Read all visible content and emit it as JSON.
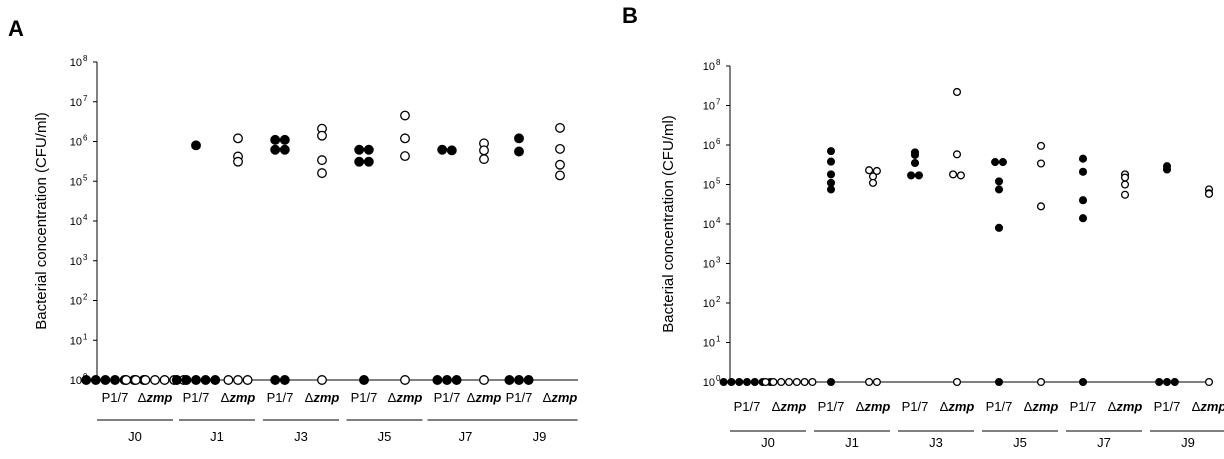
{
  "chart_data": [
    {
      "panel": "A",
      "type": "scatter",
      "ylabel": "Bacterial concentration (CFU/ml)",
      "yscale": "log",
      "ylim": [
        1,
        100000000
      ],
      "yticks": [
        {
          "base": "10",
          "exp": "0"
        },
        {
          "base": "10",
          "exp": "1"
        },
        {
          "base": "10",
          "exp": "2"
        },
        {
          "base": "10",
          "exp": "3"
        },
        {
          "base": "10",
          "exp": "4"
        },
        {
          "base": "10",
          "exp": "5"
        },
        {
          "base": "10",
          "exp": "6"
        },
        {
          "base": "10",
          "exp": "7"
        },
        {
          "base": "10",
          "exp": "8"
        }
      ],
      "groups": [
        {
          "label": "J0",
          "categories": [
            {
              "label": "P1/7",
              "italic": false,
              "marker": "filled",
              "values": [
                1,
                1,
                1,
                1,
                1,
                1,
                1
              ]
            },
            {
              "label": "Δzmp",
              "italic": true,
              "marker": "open",
              "values": [
                1,
                1,
                1,
                1,
                1,
                1,
                1
              ]
            }
          ]
        },
        {
          "label": "J1",
          "categories": [
            {
              "label": "P1/7",
              "italic": false,
              "marker": "filled",
              "values": [
                800000,
                1,
                1,
                1,
                1,
                1
              ]
            },
            {
              "label": "Δzmp",
              "italic": true,
              "marker": "open",
              "values": [
                1200000,
                420000,
                310000,
                1,
                1,
                1
              ]
            }
          ]
        },
        {
          "label": "J3",
          "categories": [
            {
              "label": "P1/7",
              "italic": false,
              "marker": "filled",
              "values": [
                1100000,
                1100000,
                620000,
                620000,
                1,
                1
              ]
            },
            {
              "label": "Δzmp",
              "italic": true,
              "marker": "open",
              "values": [
                2100000,
                1400000,
                340000,
                160000,
                1
              ]
            }
          ]
        },
        {
          "label": "J5",
          "categories": [
            {
              "label": "P1/7",
              "italic": false,
              "marker": "filled",
              "values": [
                620000,
                620000,
                310000,
                310000,
                1
              ]
            },
            {
              "label": "Δzmp",
              "italic": true,
              "marker": "open",
              "values": [
                4500000,
                1200000,
                430000,
                1
              ]
            }
          ]
        },
        {
          "label": "J7",
          "categories": [
            {
              "label": "P1/7",
              "italic": false,
              "marker": "filled",
              "values": [
                620000,
                600000,
                1,
                1,
                1
              ]
            },
            {
              "label": "Δzmp",
              "italic": true,
              "marker": "open",
              "values": [
                900000,
                600000,
                360000,
                1
              ]
            }
          ]
        },
        {
          "label": "J9",
          "categories": [
            {
              "label": "P1/7",
              "italic": false,
              "marker": "filled",
              "values": [
                1200000,
                560000,
                1,
                1,
                1
              ]
            },
            {
              "label": "Δzmp",
              "italic": true,
              "marker": "open",
              "values": [
                2200000,
                650000,
                260000,
                140000
              ]
            }
          ]
        }
      ]
    },
    {
      "panel": "B",
      "type": "scatter",
      "ylabel": "Bacterial concentration (CFU/ml)",
      "yscale": "log",
      "ylim": [
        1,
        100000000
      ],
      "yticks": [
        {
          "base": "10",
          "exp": "0"
        },
        {
          "base": "10",
          "exp": "1"
        },
        {
          "base": "10",
          "exp": "2"
        },
        {
          "base": "10",
          "exp": "3"
        },
        {
          "base": "10",
          "exp": "4"
        },
        {
          "base": "10",
          "exp": "5"
        },
        {
          "base": "10",
          "exp": "6"
        },
        {
          "base": "10",
          "exp": "7"
        },
        {
          "base": "10",
          "exp": "8"
        }
      ],
      "groups": [
        {
          "label": "J0",
          "categories": [
            {
              "label": "P1/7",
              "italic": false,
              "marker": "filled",
              "values": [
                1,
                1,
                1,
                1,
                1,
                1,
                1
              ]
            },
            {
              "label": "Δzmp",
              "italic": true,
              "marker": "open",
              "values": [
                1,
                1,
                1,
                1,
                1,
                1,
                1
              ]
            }
          ]
        },
        {
          "label": "J1",
          "categories": [
            {
              "label": "P1/7",
              "italic": false,
              "marker": "filled",
              "values": [
                700000,
                380000,
                180000,
                110000,
                75000,
                1
              ]
            },
            {
              "label": "Δzmp",
              "italic": true,
              "marker": "open",
              "values": [
                230000,
                220000,
                160000,
                110000,
                1,
                1
              ]
            }
          ]
        },
        {
          "label": "J3",
          "categories": [
            {
              "label": "P1/7",
              "italic": false,
              "marker": "filled",
              "values": [
                650000,
                560000,
                350000,
                170000,
                170000
              ]
            },
            {
              "label": "Δzmp",
              "italic": true,
              "marker": "open",
              "values": [
                22000000,
                580000,
                180000,
                170000,
                1
              ]
            }
          ]
        },
        {
          "label": "J5",
          "categories": [
            {
              "label": "P1/7",
              "italic": false,
              "marker": "filled",
              "values": [
                370000,
                370000,
                120000,
                75000,
                8000,
                1
              ]
            },
            {
              "label": "Δzmp",
              "italic": true,
              "marker": "open",
              "values": [
                950000,
                340000,
                28000,
                1
              ]
            }
          ]
        },
        {
          "label": "J7",
          "categories": [
            {
              "label": "P1/7",
              "italic": false,
              "marker": "filled",
              "values": [
                450000,
                210000,
                40000,
                14000,
                1
              ]
            },
            {
              "label": "Δzmp",
              "italic": true,
              "marker": "open",
              "values": [
                180000,
                150000,
                100000,
                55000
              ]
            }
          ]
        },
        {
          "label": "J9",
          "categories": [
            {
              "label": "P1/7",
              "italic": false,
              "marker": "filled",
              "values": [
                290000,
                240000,
                1,
                1,
                1
              ]
            },
            {
              "label": "Δzmp",
              "italic": true,
              "marker": "open",
              "values": [
                75000,
                60000,
                58000,
                1
              ]
            }
          ]
        }
      ]
    }
  ]
}
